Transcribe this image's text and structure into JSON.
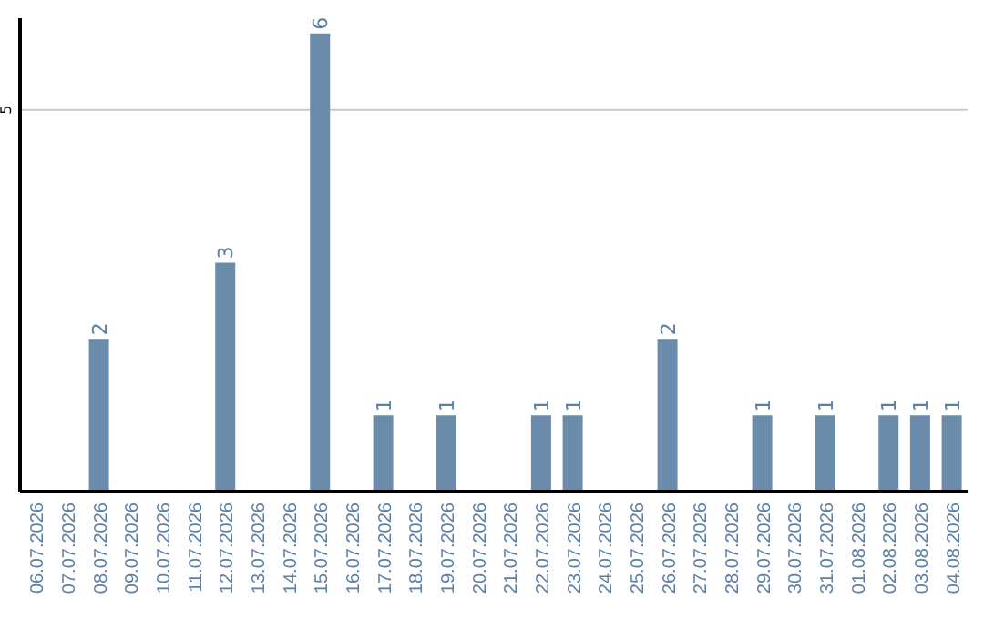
{
  "chart_data": {
    "type": "bar",
    "categories": [
      "06.07.2026",
      "07.07.2026",
      "08.07.2026",
      "09.07.2026",
      "10.07.2026",
      "11.07.2026",
      "12.07.2026",
      "13.07.2026",
      "14.07.2026",
      "15.07.2026",
      "16.07.2026",
      "17.07.2026",
      "18.07.2026",
      "19.07.2026",
      "20.07.2026",
      "21.07.2026",
      "22.07.2026",
      "23.07.2026",
      "24.07.2026",
      "25.07.2026",
      "26.07.2026",
      "27.07.2026",
      "28.07.2026",
      "29.07.2026",
      "30.07.2026",
      "31.07.2026",
      "01.08.2026",
      "02.08.2026",
      "03.08.2026",
      "04.08.2026"
    ],
    "values": [
      0,
      0,
      2,
      0,
      0,
      0,
      3,
      0,
      0,
      6,
      0,
      1,
      0,
      1,
      0,
      0,
      1,
      1,
      0,
      0,
      2,
      0,
      0,
      1,
      0,
      1,
      0,
      1,
      1,
      1
    ],
    "value_labels": [
      null,
      null,
      "2",
      null,
      null,
      null,
      "3",
      null,
      null,
      "6",
      null,
      "1",
      null,
      "1",
      null,
      null,
      "1",
      "1",
      null,
      null,
      "2",
      null,
      null,
      "1",
      null,
      "1",
      null,
      "1",
      "1",
      "1"
    ],
    "color": "#6a8caa",
    "ylim": [
      0,
      6.2
    ],
    "yticks": [
      5
    ],
    "grid": "y"
  }
}
